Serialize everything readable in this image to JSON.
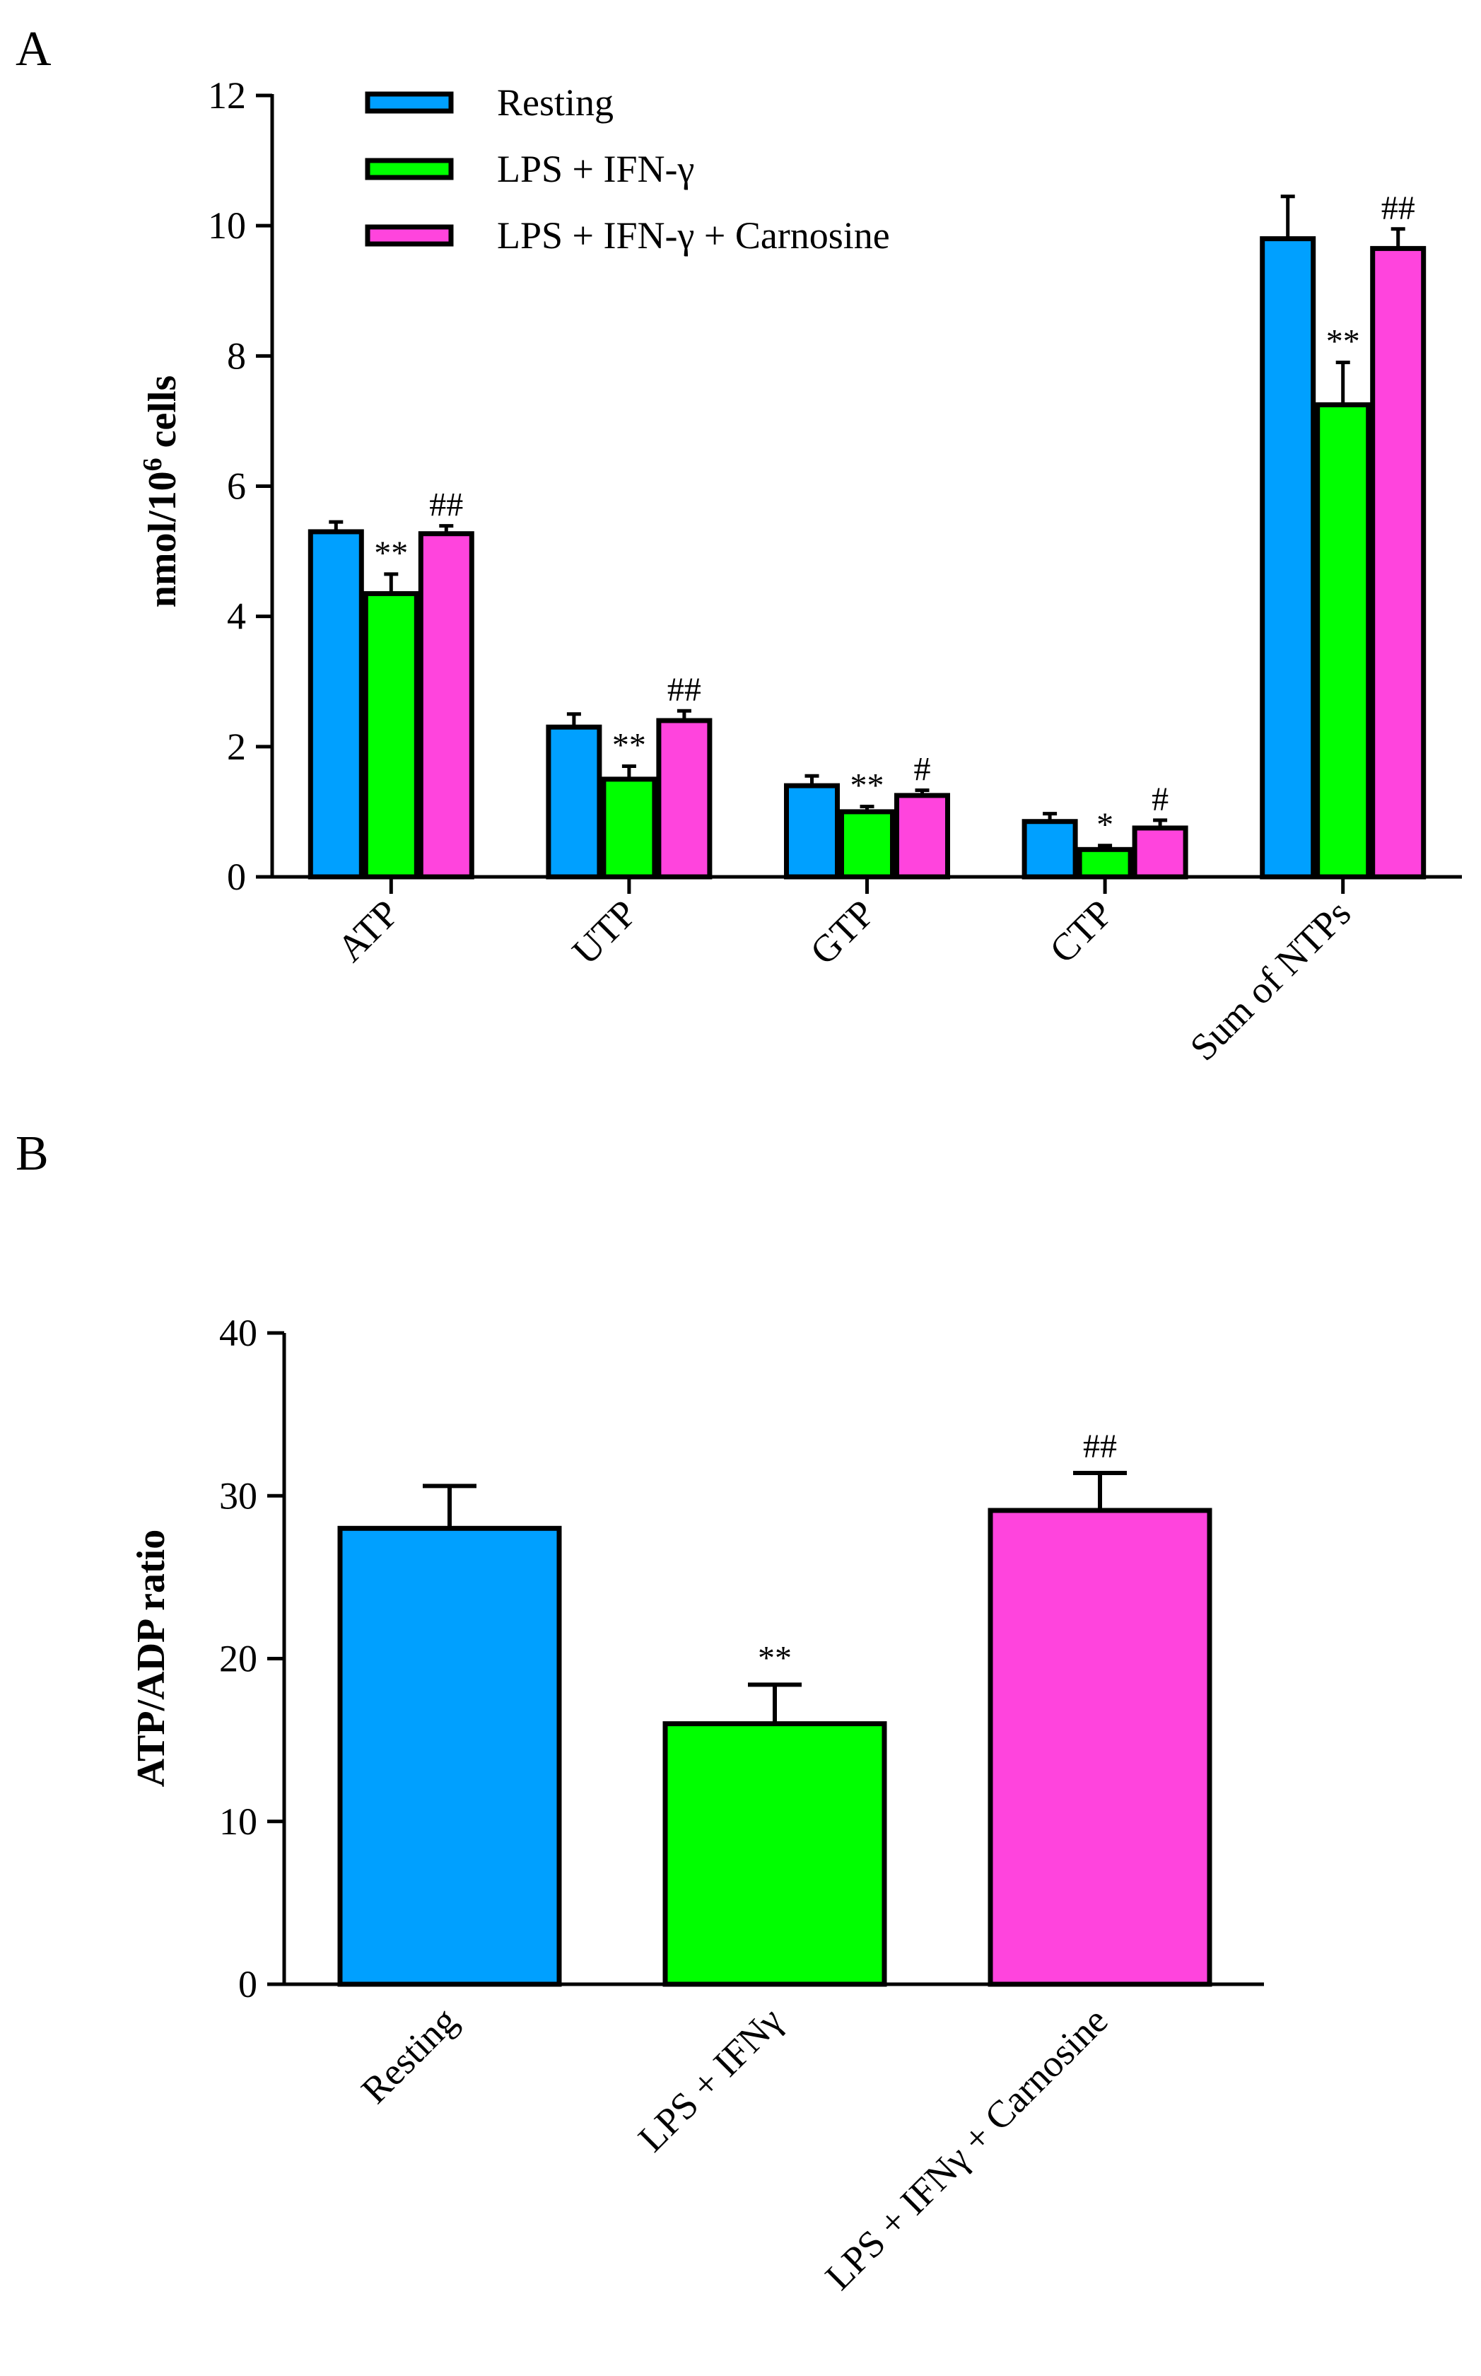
{
  "colors": {
    "resting": "#00a0ff",
    "lps_ifn": "#00ff00",
    "lps_ifn_carnosine": "#ff44dd",
    "axis": "#000000"
  },
  "chart_data": [
    {
      "panel": "A",
      "type": "bar",
      "ylabel_main": "nmol/10",
      "ylabel_sup": "6",
      "ylabel_tail": " cells",
      "ylim": [
        0,
        12
      ],
      "yticks": [
        "0",
        "2",
        "4",
        "6",
        "8",
        "10",
        "12"
      ],
      "categories": [
        "ATP",
        "UTP",
        "GTP",
        "CTP",
        "Sum of NTPs"
      ],
      "legend": {
        "placement": "top-left"
      },
      "series": [
        {
          "name": "Resting",
          "color_key": "resting",
          "values": [
            5.3,
            2.3,
            1.4,
            0.85,
            9.8
          ],
          "errors": [
            0.15,
            0.2,
            0.15,
            0.12,
            0.65
          ],
          "annotations": [
            "",
            "",
            "",
            "",
            ""
          ]
        },
        {
          "name": "LPS + IFN-γ",
          "color_key": "lps_ifn",
          "values": [
            4.35,
            1.5,
            1.0,
            0.42,
            7.25
          ],
          "errors": [
            0.3,
            0.2,
            0.08,
            0.06,
            0.65
          ],
          "annotations": [
            "**",
            "**",
            "**",
            "*",
            "**"
          ]
        },
        {
          "name": "LPS + IFN-γ + Carnosine",
          "color_key": "lps_ifn_carnosine",
          "values": [
            5.27,
            2.4,
            1.25,
            0.75,
            9.65
          ],
          "errors": [
            0.12,
            0.15,
            0.08,
            0.12,
            0.3
          ],
          "annotations": [
            "##",
            "##",
            "#",
            "#",
            "##"
          ]
        }
      ]
    },
    {
      "panel": "B",
      "type": "bar",
      "ylabel": "ATP/ADP ratio",
      "ylim": [
        0,
        40
      ],
      "yticks": [
        "0",
        "10",
        "20",
        "30",
        "40"
      ],
      "categories": [
        "Resting",
        "LPS + IFNγ",
        "LPS + IFNγ + Carnosine"
      ],
      "values": [
        28.0,
        16.0,
        29.1
      ],
      "errors": [
        2.6,
        2.4,
        2.3
      ],
      "annotations": [
        "",
        "**",
        "##"
      ],
      "color_keys": [
        "resting",
        "lps_ifn",
        "lps_ifn_carnosine"
      ]
    }
  ]
}
